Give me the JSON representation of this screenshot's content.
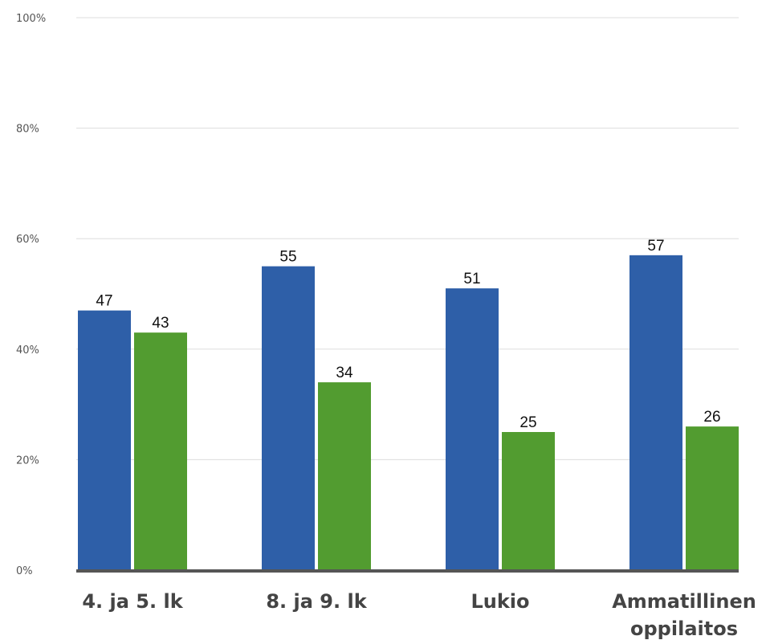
{
  "chart_data": {
    "type": "bar",
    "categories": [
      [
        "4. ja 5. lk"
      ],
      [
        "8. ja 9. lk"
      ],
      [
        "Lukio"
      ],
      [
        "Ammatillinen",
        "oppilaitos"
      ]
    ],
    "series": [
      {
        "color": "#2e5fa8",
        "values": [
          47,
          55,
          51,
          57
        ]
      },
      {
        "color": "#529c30",
        "values": [
          43,
          34,
          25,
          26
        ]
      }
    ],
    "yticks": [
      "0%",
      "20%",
      "40%",
      "60%",
      "80%",
      "100%"
    ],
    "ylim": [
      0,
      100
    ],
    "grid": true,
    "legend": "none"
  }
}
